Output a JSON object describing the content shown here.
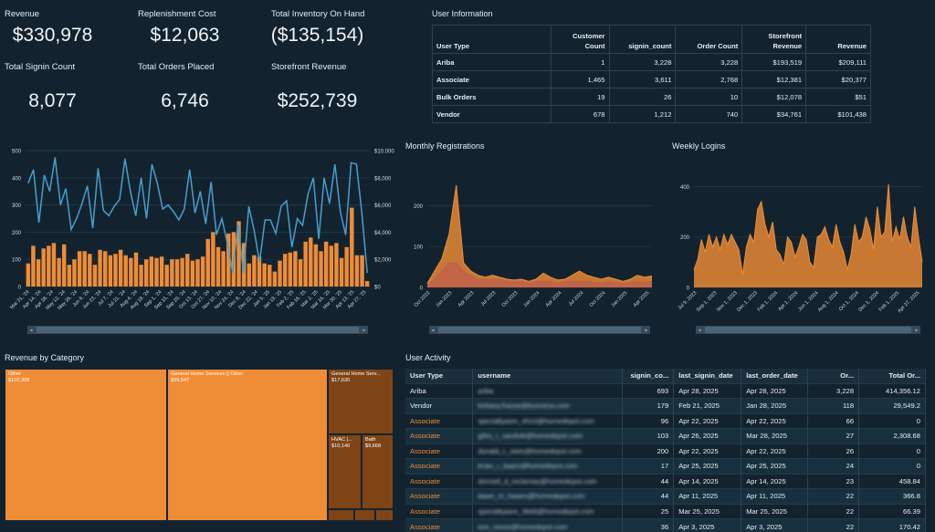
{
  "kpis": {
    "revenue": {
      "label": "Revenue",
      "value": "$330,978"
    },
    "replenishment_cost": {
      "label": "Replenishment Cost",
      "value": "$12,063"
    },
    "total_inventory": {
      "label": "Total Inventory On Hand",
      "value": "($135,154)"
    },
    "signin_count": {
      "label": "Total Signin Count",
      "value": "8,077"
    },
    "orders_placed": {
      "label": "Total Orders Placed",
      "value": "6,746"
    },
    "storefront_revenue": {
      "label": "Storefront Revenue",
      "value": "$252,739"
    }
  },
  "user_information": {
    "title": "User Information",
    "headers": {
      "user_type": "User Type",
      "customer_count_1": "Customer",
      "customer_count_2": "Count",
      "signin": "signin_count",
      "order": "Order Count",
      "storefront_1": "Storefront",
      "storefront_2": "Revenue",
      "revenue": "Revenue"
    },
    "rows": [
      {
        "type": "Ariba",
        "customers": "1",
        "signin": "3,228",
        "orders": "3,228",
        "storefront": "$193,519",
        "revenue": "$209,111"
      },
      {
        "type": "Associate",
        "customers": "1,465",
        "signin": "3,611",
        "orders": "2,768",
        "storefront": "$12,381",
        "revenue": "$20,377"
      },
      {
        "type": "Bulk Orders",
        "customers": "19",
        "signin": "26",
        "orders": "10",
        "storefront": "$12,078",
        "revenue": "$51"
      },
      {
        "type": "Vendor",
        "customers": "678",
        "signin": "1,212",
        "orders": "740",
        "storefront": "$34,761",
        "revenue": "$101,438"
      }
    ]
  },
  "combo_chart": {
    "left_ticks": [
      "0",
      "100",
      "200",
      "300",
      "400",
      "500"
    ],
    "right_ticks": [
      "$0",
      "$2,000",
      "$4,000",
      "$6,000",
      "$8,000",
      "$10,000"
    ],
    "x_labels": [
      "Mar 31, '24",
      "Apr 14, '24",
      "Apr 28, '24",
      "May 12, '24",
      "May 26, '24",
      "Jun 9, '24",
      "Jun 23, '24",
      "Jul 7, '24",
      "Jul 21, '24",
      "Aug 4, '24",
      "Aug 18, '24",
      "Sep 1, '24",
      "Sep 15, '24",
      "Sep 29, '24",
      "Oct 13, '24",
      "Oct 27, '24",
      "Nov 10, '24",
      "Nov 24, '24",
      "Dec 8, '24",
      "Dec 22, '24",
      "Jan 5, '25",
      "Jan 19, '25",
      "Feb 2, '25",
      "Feb 16, '25",
      "Mar 2, '25",
      "Mar 16, '25",
      "Mar 30, '25",
      "Apr 13, '25",
      "Apr 27, '25"
    ],
    "bars": [
      85,
      150,
      100,
      140,
      150,
      160,
      105,
      155,
      80,
      100,
      130,
      130,
      120,
      80,
      135,
      130,
      115,
      120,
      135,
      115,
      105,
      125,
      80,
      100,
      110,
      105,
      110,
      80,
      100,
      100,
      105,
      120,
      95,
      100,
      110,
      175,
      200,
      145,
      130,
      195,
      200,
      240,
      160,
      85,
      115,
      110,
      85,
      80,
      55,
      95,
      120,
      125,
      130,
      100,
      165,
      180,
      155,
      130,
      165,
      150,
      160,
      105,
      145,
      290,
      115,
      115,
      20
    ],
    "line": [
      7600,
      8600,
      4700,
      8200,
      7000,
      9500,
      6000,
      7200,
      4200,
      5000,
      6100,
      7400,
      4300,
      8700,
      5600,
      5200,
      5900,
      6400,
      9400,
      7000,
      5200,
      8000,
      5000,
      9000,
      7600,
      5700,
      6000,
      5500,
      4900,
      5700,
      8600,
      5400,
      7000,
      4600,
      7700,
      3800,
      5000,
      3200,
      1000,
      4600,
      1000,
      5900,
      4100,
      1800,
      4900,
      4900,
      3900,
      5900,
      6300,
      2900,
      5000,
      4500,
      6800,
      8000,
      3500,
      8000,
      6100,
      9000,
      5500,
      3800,
      9100,
      9000,
      5400,
      1000
    ],
    "bar_color": "#ef8c36",
    "line_color": "#4a9dcb"
  },
  "monthly_registrations": {
    "title": "Monthly Registrations",
    "y_ticks": [
      "0",
      "100",
      "200"
    ],
    "x_labels": [
      "Oct 2022",
      "Jan 2023",
      "Apr 2023",
      "Jul 2023",
      "Oct 2023",
      "Jan 2024",
      "Apr 2024",
      "Jul 2024",
      "Oct 2024",
      "Jan 2025",
      "Apr 2025"
    ],
    "series_a": [
      10,
      40,
      70,
      130,
      250,
      60,
      40,
      30,
      25,
      30,
      25,
      20,
      18,
      20,
      15,
      20,
      35,
      25,
      18,
      20,
      30,
      40,
      30,
      25,
      20,
      25,
      20,
      15,
      20,
      30,
      25,
      28
    ],
    "series_b": [
      5,
      20,
      40,
      60,
      60,
      40,
      30,
      20,
      20,
      20,
      20,
      15,
      15,
      15,
      10,
      15,
      15,
      15,
      10,
      15,
      15,
      15,
      15,
      12,
      10,
      15,
      12,
      10,
      12,
      15,
      12,
      15
    ],
    "colors": [
      "#ef8c36",
      "#c0624a"
    ]
  },
  "weekly_logins": {
    "title": "Weekly Logins",
    "y_ticks": [
      "0",
      "200",
      "400"
    ],
    "x_labels": [
      "Jul 9, 2023",
      "Sep 1, 2023",
      "Nov 1, 2023",
      "Dec 1, 2023",
      "Feb 1, 2024",
      "Apr 1, 2024",
      "Jun 1, 2024",
      "Aug 1, 2024",
      "Oct 1, 2024",
      "Dec 1, 2024",
      "Feb 1, 2025",
      "Apr 27, 2025"
    ],
    "values": [
      70,
      110,
      190,
      140,
      210,
      160,
      200,
      150,
      210,
      170,
      210,
      180,
      150,
      50,
      160,
      210,
      180,
      310,
      340,
      250,
      200,
      260,
      150,
      130,
      90,
      200,
      180,
      120,
      160,
      210,
      190,
      100,
      80,
      200,
      210,
      240,
      190,
      160,
      250,
      180,
      140,
      70,
      130,
      250,
      180,
      200,
      280,
      230,
      150,
      320,
      200,
      220,
      410,
      180,
      240,
      190,
      280,
      200,
      160,
      320,
      200,
      100
    ],
    "color": "#ef8c36"
  },
  "revenue_by_category": {
    "title": "Revenue by Category",
    "cells": [
      {
        "name": "Other",
        "value": "$102,308"
      },
      {
        "name": "General Home Services || Other",
        "value": "$99,547"
      },
      {
        "name": "General Home Serv...",
        "value": "$17,630"
      },
      {
        "name": "HVAC |...",
        "value": "$10,140"
      },
      {
        "name": "Bath",
        "value": "$9,668"
      }
    ],
    "colors": {
      "major": "#ef8c36",
      "minor": "#7e4416"
    }
  },
  "user_activity": {
    "title": "User Activity",
    "headers": {
      "user_type": "User Type",
      "username": "username",
      "signin": "signin_co...",
      "last_signin": "last_signin_date",
      "last_order": "last_order_date",
      "orders": "Or...",
      "total": "Total Or..."
    },
    "rows": [
      {
        "type": "Ariba",
        "username": "ariba",
        "signin": "693",
        "last_signin": "Apr 28, 2025",
        "last_order": "Apr 28, 2025",
        "orders": "3,228",
        "total": "414,356.12"
      },
      {
        "type": "Vendor",
        "username": "brittany.frasse@bunnexa.com",
        "signin": "179",
        "last_signin": "Feb 21, 2025",
        "last_order": "Jan 28, 2025",
        "orders": "118",
        "total": "29,549.2"
      },
      {
        "type": "Associate",
        "username": "specialtyasm_4510@homedepot.com",
        "signin": "96",
        "last_signin": "Apr 22, 2025",
        "last_order": "Apr 22, 2025",
        "orders": "66",
        "total": "0"
      },
      {
        "type": "Associate",
        "username": "giles_r_sandvik@homedepot.com",
        "signin": "103",
        "last_signin": "Apr 26, 2025",
        "last_order": "Mar 28, 2025",
        "orders": "27",
        "total": "2,308.68"
      },
      {
        "type": "Associate",
        "username": "donald_c_stein@homedepot.com",
        "signin": "200",
        "last_signin": "Apr 22, 2025",
        "last_order": "Apr 22, 2025",
        "orders": "26",
        "total": "0"
      },
      {
        "type": "Associate",
        "username": "brian_r_baars@homedepot.com",
        "signin": "17",
        "last_signin": "Apr 25, 2025",
        "last_order": "Apr 25, 2025",
        "orders": "24",
        "total": "0"
      },
      {
        "type": "Associate",
        "username": "donnell_d_mclarney@homedepot.com",
        "signin": "44",
        "last_signin": "Apr 14, 2025",
        "last_order": "Apr 14, 2025",
        "orders": "23",
        "total": "458.84"
      },
      {
        "type": "Associate",
        "username": "dawn_m_hawes@homedepot.com",
        "signin": "44",
        "last_signin": "Apr 11, 2025",
        "last_order": "Apr 11, 2025",
        "orders": "22",
        "total": "366.8"
      },
      {
        "type": "Associate",
        "username": "specialtyasm_3849@homedepot.com",
        "signin": "25",
        "last_signin": "Mar 25, 2025",
        "last_order": "Mar 25, 2025",
        "orders": "22",
        "total": "66.39"
      },
      {
        "type": "Associate",
        "username": "tom_reese@homedepot.com",
        "signin": "36",
        "last_signin": "Apr 3, 2025",
        "last_order": "Apr 3, 2025",
        "orders": "22",
        "total": "170.42"
      }
    ]
  }
}
